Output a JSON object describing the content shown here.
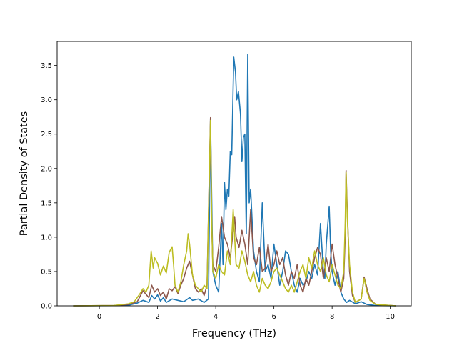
{
  "chart_data": {
    "type": "line",
    "title": "",
    "xlabel": "Frequency (THz)",
    "ylabel": "Partial Density of States",
    "xlim": [
      -1.45,
      10.72
    ],
    "ylim": [
      0,
      3.85
    ],
    "xticks": [
      0,
      2,
      4,
      6,
      8,
      10
    ],
    "yticks": [
      0.0,
      0.5,
      1.0,
      1.5,
      2.0,
      2.5,
      3.0,
      3.5
    ],
    "grid": false,
    "legend": "none",
    "series": [
      {
        "color": "#1f77b4",
        "points": [
          [
            -0.9,
            0
          ],
          [
            0.5,
            0.003
          ],
          [
            1.0,
            0.01
          ],
          [
            1.3,
            0.04
          ],
          [
            1.5,
            0.08
          ],
          [
            1.7,
            0.05
          ],
          [
            1.8,
            0.15
          ],
          [
            1.9,
            0.1
          ],
          [
            2.0,
            0.16
          ],
          [
            2.1,
            0.07
          ],
          [
            2.2,
            0.12
          ],
          [
            2.3,
            0.05
          ],
          [
            2.5,
            0.1
          ],
          [
            2.7,
            0.08
          ],
          [
            2.9,
            0.06
          ],
          [
            3.1,
            0.12
          ],
          [
            3.2,
            0.08
          ],
          [
            3.4,
            0.1
          ],
          [
            3.6,
            0.05
          ],
          [
            3.75,
            0.1
          ],
          [
            3.82,
            2.72
          ],
          [
            3.86,
            1.6
          ],
          [
            3.9,
            0.5
          ],
          [
            4.0,
            0.3
          ],
          [
            4.1,
            0.2
          ],
          [
            4.2,
            1.2
          ],
          [
            4.25,
            0.6
          ],
          [
            4.3,
            1.8
          ],
          [
            4.35,
            1.4
          ],
          [
            4.4,
            1.7
          ],
          [
            4.45,
            1.6
          ],
          [
            4.5,
            2.25
          ],
          [
            4.55,
            2.2
          ],
          [
            4.62,
            3.62
          ],
          [
            4.68,
            3.4
          ],
          [
            4.72,
            3.0
          ],
          [
            4.78,
            3.12
          ],
          [
            4.85,
            2.8
          ],
          [
            4.9,
            2.1
          ],
          [
            4.95,
            2.45
          ],
          [
            5.0,
            2.5
          ],
          [
            5.05,
            1.05
          ],
          [
            5.1,
            3.66
          ],
          [
            5.15,
            1.5
          ],
          [
            5.2,
            1.7
          ],
          [
            5.3,
            0.8
          ],
          [
            5.4,
            0.5
          ],
          [
            5.5,
            0.35
          ],
          [
            5.6,
            1.5
          ],
          [
            5.7,
            0.5
          ],
          [
            5.8,
            0.6
          ],
          [
            5.9,
            0.4
          ],
          [
            6.0,
            0.9
          ],
          [
            6.1,
            0.6
          ],
          [
            6.2,
            0.3
          ],
          [
            6.3,
            0.5
          ],
          [
            6.4,
            0.8
          ],
          [
            6.5,
            0.75
          ],
          [
            6.6,
            0.5
          ],
          [
            6.7,
            0.3
          ],
          [
            6.8,
            0.2
          ],
          [
            6.9,
            0.4
          ],
          [
            7.0,
            0.3
          ],
          [
            7.1,
            0.35
          ],
          [
            7.2,
            0.5
          ],
          [
            7.3,
            0.4
          ],
          [
            7.4,
            0.6
          ],
          [
            7.5,
            0.45
          ],
          [
            7.6,
            1.2
          ],
          [
            7.7,
            0.5
          ],
          [
            7.75,
            0.4
          ],
          [
            7.8,
            0.9
          ],
          [
            7.9,
            1.45
          ],
          [
            7.95,
            0.8
          ],
          [
            8.0,
            0.5
          ],
          [
            8.1,
            0.3
          ],
          [
            8.2,
            0.5
          ],
          [
            8.3,
            0.2
          ],
          [
            8.4,
            0.1
          ],
          [
            8.5,
            0.05
          ],
          [
            8.6,
            0.08
          ],
          [
            8.8,
            0.03
          ],
          [
            9.0,
            0.06
          ],
          [
            9.2,
            0.02
          ],
          [
            9.5,
            0.005
          ],
          [
            10.2,
            0
          ]
        ]
      },
      {
        "color": "#8c564b",
        "points": [
          [
            -0.9,
            0
          ],
          [
            0.5,
            0.005
          ],
          [
            1.0,
            0.02
          ],
          [
            1.3,
            0.06
          ],
          [
            1.5,
            0.22
          ],
          [
            1.7,
            0.12
          ],
          [
            1.8,
            0.3
          ],
          [
            1.9,
            0.2
          ],
          [
            2.0,
            0.25
          ],
          [
            2.1,
            0.15
          ],
          [
            2.2,
            0.2
          ],
          [
            2.3,
            0.1
          ],
          [
            2.4,
            0.25
          ],
          [
            2.5,
            0.22
          ],
          [
            2.6,
            0.28
          ],
          [
            2.7,
            0.18
          ],
          [
            2.8,
            0.3
          ],
          [
            2.9,
            0.4
          ],
          [
            3.0,
            0.55
          ],
          [
            3.1,
            0.65
          ],
          [
            3.2,
            0.45
          ],
          [
            3.3,
            0.25
          ],
          [
            3.4,
            0.2
          ],
          [
            3.5,
            0.25
          ],
          [
            3.6,
            0.15
          ],
          [
            3.7,
            0.3
          ],
          [
            3.82,
            2.74
          ],
          [
            3.86,
            1.2
          ],
          [
            3.9,
            0.6
          ],
          [
            4.0,
            0.5
          ],
          [
            4.1,
            0.85
          ],
          [
            4.2,
            1.3
          ],
          [
            4.3,
            1.0
          ],
          [
            4.4,
            0.9
          ],
          [
            4.5,
            0.7
          ],
          [
            4.6,
            1.1
          ],
          [
            4.65,
            1.3
          ],
          [
            4.7,
            1.0
          ],
          [
            4.8,
            0.85
          ],
          [
            4.9,
            1.1
          ],
          [
            5.0,
            0.9
          ],
          [
            5.1,
            0.6
          ],
          [
            5.2,
            1.4
          ],
          [
            5.3,
            0.7
          ],
          [
            5.4,
            0.6
          ],
          [
            5.5,
            0.85
          ],
          [
            5.6,
            0.5
          ],
          [
            5.7,
            0.55
          ],
          [
            5.8,
            0.9
          ],
          [
            5.9,
            0.5
          ],
          [
            6.0,
            0.6
          ],
          [
            6.1,
            0.8
          ],
          [
            6.2,
            0.6
          ],
          [
            6.3,
            0.7
          ],
          [
            6.4,
            0.45
          ],
          [
            6.5,
            0.3
          ],
          [
            6.6,
            0.5
          ],
          [
            6.7,
            0.4
          ],
          [
            6.8,
            0.6
          ],
          [
            6.9,
            0.3
          ],
          [
            7.0,
            0.2
          ],
          [
            7.1,
            0.4
          ],
          [
            7.2,
            0.3
          ],
          [
            7.3,
            0.5
          ],
          [
            7.4,
            0.7
          ],
          [
            7.5,
            0.85
          ],
          [
            7.6,
            0.75
          ],
          [
            7.7,
            0.4
          ],
          [
            7.8,
            0.7
          ],
          [
            7.9,
            0.5
          ],
          [
            8.0,
            0.9
          ],
          [
            8.1,
            0.6
          ],
          [
            8.2,
            0.4
          ],
          [
            8.3,
            0.2
          ],
          [
            8.4,
            0.4
          ],
          [
            8.45,
            1.0
          ],
          [
            8.48,
            1.97
          ],
          [
            8.52,
            1.4
          ],
          [
            8.6,
            0.5
          ],
          [
            8.7,
            0.15
          ],
          [
            8.8,
            0.05
          ],
          [
            9.0,
            0.1
          ],
          [
            9.1,
            0.42
          ],
          [
            9.2,
            0.25
          ],
          [
            9.3,
            0.1
          ],
          [
            9.5,
            0.02
          ],
          [
            10.2,
            0
          ]
        ]
      },
      {
        "color": "#bcbd22",
        "points": [
          [
            -0.9,
            0
          ],
          [
            0.5,
            0.005
          ],
          [
            1.0,
            0.03
          ],
          [
            1.2,
            0.06
          ],
          [
            1.4,
            0.18
          ],
          [
            1.5,
            0.25
          ],
          [
            1.6,
            0.2
          ],
          [
            1.7,
            0.3
          ],
          [
            1.78,
            0.8
          ],
          [
            1.85,
            0.55
          ],
          [
            1.9,
            0.7
          ],
          [
            2.0,
            0.62
          ],
          [
            2.1,
            0.45
          ],
          [
            2.2,
            0.58
          ],
          [
            2.3,
            0.48
          ],
          [
            2.4,
            0.78
          ],
          [
            2.5,
            0.86
          ],
          [
            2.55,
            0.6
          ],
          [
            2.6,
            0.3
          ],
          [
            2.7,
            0.2
          ],
          [
            2.8,
            0.35
          ],
          [
            2.9,
            0.6
          ],
          [
            3.0,
            0.8
          ],
          [
            3.05,
            1.05
          ],
          [
            3.1,
            0.9
          ],
          [
            3.2,
            0.45
          ],
          [
            3.3,
            0.3
          ],
          [
            3.4,
            0.25
          ],
          [
            3.5,
            0.2
          ],
          [
            3.6,
            0.3
          ],
          [
            3.7,
            0.25
          ],
          [
            3.82,
            2.7
          ],
          [
            3.86,
            1.3
          ],
          [
            3.9,
            0.5
          ],
          [
            4.0,
            0.4
          ],
          [
            4.1,
            0.6
          ],
          [
            4.2,
            0.5
          ],
          [
            4.3,
            0.45
          ],
          [
            4.4,
            0.8
          ],
          [
            4.5,
            0.6
          ],
          [
            4.6,
            1.4
          ],
          [
            4.65,
            1.0
          ],
          [
            4.7,
            0.6
          ],
          [
            4.8,
            0.55
          ],
          [
            4.9,
            0.8
          ],
          [
            5.0,
            0.65
          ],
          [
            5.1,
            0.45
          ],
          [
            5.2,
            0.35
          ],
          [
            5.3,
            0.5
          ],
          [
            5.4,
            0.3
          ],
          [
            5.5,
            0.2
          ],
          [
            5.6,
            0.4
          ],
          [
            5.7,
            0.3
          ],
          [
            5.8,
            0.25
          ],
          [
            5.9,
            0.35
          ],
          [
            6.0,
            0.5
          ],
          [
            6.1,
            0.55
          ],
          [
            6.2,
            0.45
          ],
          [
            6.3,
            0.35
          ],
          [
            6.4,
            0.25
          ],
          [
            6.5,
            0.2
          ],
          [
            6.6,
            0.3
          ],
          [
            6.7,
            0.2
          ],
          [
            6.8,
            0.35
          ],
          [
            6.9,
            0.5
          ],
          [
            7.0,
            0.6
          ],
          [
            7.1,
            0.4
          ],
          [
            7.2,
            0.7
          ],
          [
            7.3,
            0.55
          ],
          [
            7.4,
            0.8
          ],
          [
            7.5,
            0.6
          ],
          [
            7.6,
            0.5
          ],
          [
            7.7,
            0.7
          ],
          [
            7.8,
            0.45
          ],
          [
            7.9,
            0.35
          ],
          [
            8.0,
            0.6
          ],
          [
            8.1,
            0.45
          ],
          [
            8.2,
            0.3
          ],
          [
            8.3,
            0.25
          ],
          [
            8.4,
            0.5
          ],
          [
            8.45,
            1.2
          ],
          [
            8.48,
            1.95
          ],
          [
            8.52,
            1.3
          ],
          [
            8.6,
            0.6
          ],
          [
            8.7,
            0.2
          ],
          [
            8.8,
            0.05
          ],
          [
            9.0,
            0.1
          ],
          [
            9.1,
            0.4
          ],
          [
            9.2,
            0.2
          ],
          [
            9.3,
            0.08
          ],
          [
            9.5,
            0.02
          ],
          [
            10.2,
            0
          ]
        ]
      }
    ]
  }
}
